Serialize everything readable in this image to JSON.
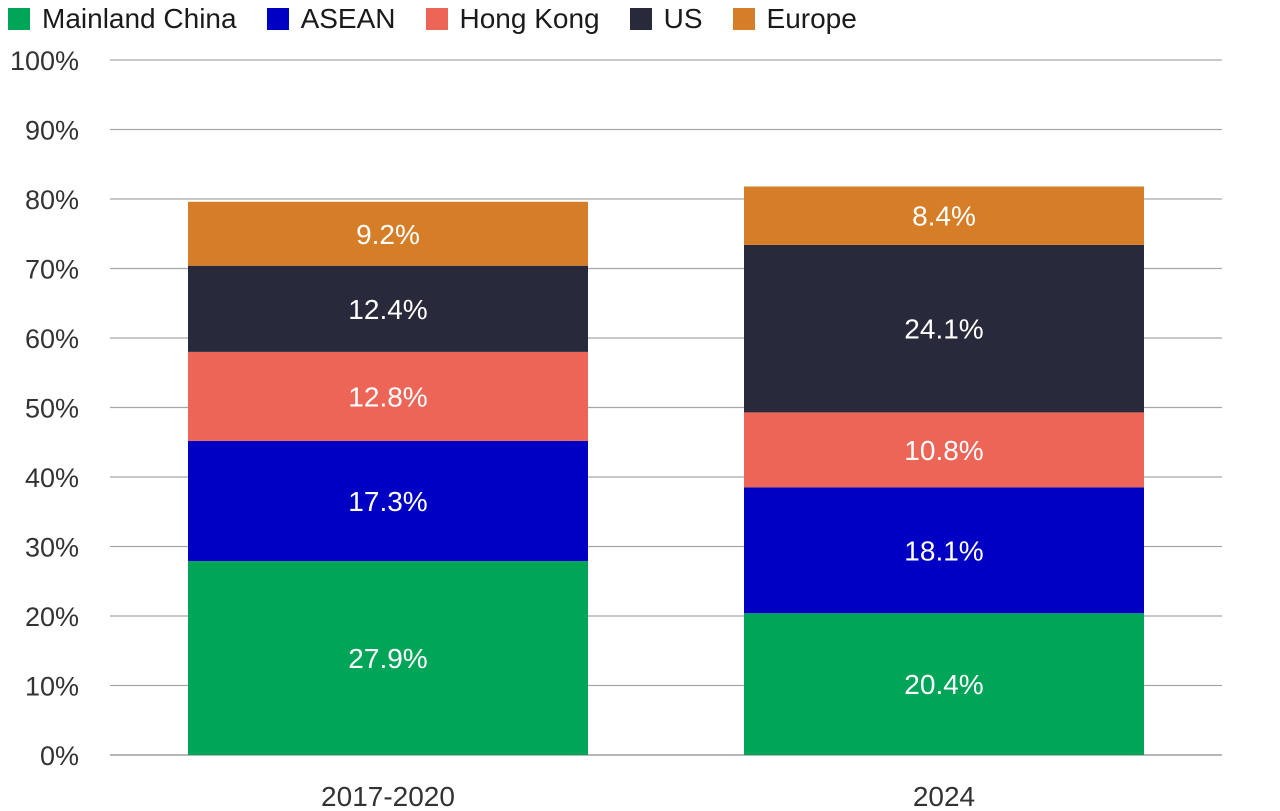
{
  "chart_data": {
    "type": "bar",
    "stacked": true,
    "categories": [
      "2017-2020",
      "2024"
    ],
    "series": [
      {
        "name": "Mainland China",
        "color": "#00a558",
        "values": [
          27.9,
          20.4
        ],
        "labels": [
          "27.9%",
          "20.4%"
        ]
      },
      {
        "name": "ASEAN",
        "color": "#0000c4",
        "values": [
          17.3,
          18.1
        ],
        "labels": [
          "17.3%",
          "18.1%"
        ]
      },
      {
        "name": "Hong Kong",
        "color": "#ec6556",
        "values": [
          12.8,
          10.8
        ],
        "labels": [
          "12.8%",
          "10.8%"
        ]
      },
      {
        "name": "US",
        "color": "#282a3b",
        "values": [
          12.4,
          24.1
        ],
        "labels": [
          "12.4%",
          "24.1%"
        ]
      },
      {
        "name": "Europe",
        "color": "#d67d27",
        "values": [
          9.2,
          8.4
        ],
        "labels": [
          "9.2%",
          "8.4%"
        ]
      }
    ],
    "ylim": [
      0,
      100
    ],
    "yticks": [
      "0%",
      "10%",
      "20%",
      "30%",
      "40%",
      "50%",
      "60%",
      "70%",
      "80%",
      "90%",
      "100%"
    ],
    "grid": true,
    "legend_position": "top-left"
  }
}
